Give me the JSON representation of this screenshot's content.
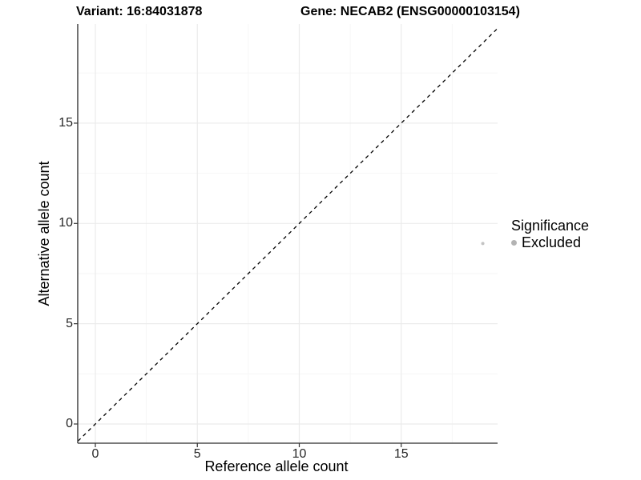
{
  "header": {
    "variant_title": "Variant: 16:84031878",
    "gene_title": "Gene: NECAB2 (ENSG00000103154)"
  },
  "chart_data": {
    "type": "scatter",
    "xlabel": "Reference allele count",
    "ylabel": "Alternative allele count",
    "x_ticks": [
      0,
      5,
      10,
      15
    ],
    "y_ticks": [
      0,
      5,
      10,
      15
    ],
    "x_minor_ticks": [
      2.5,
      7.5,
      12.5,
      17.5
    ],
    "y_minor_ticks": [
      2.5,
      7.5,
      12.5,
      17.5
    ],
    "xlim": [
      -0.85,
      19.72
    ],
    "ylim": [
      -0.94,
      19.94
    ],
    "grid": true,
    "identity_line": {
      "slope": 1,
      "intercept": 0,
      "style": "dashed",
      "color": "#000000"
    },
    "points": [
      {
        "x": 19,
        "y": 9,
        "significance": "Excluded",
        "color": "#c3c3c3",
        "radius": 2
      }
    ],
    "legend": {
      "title": "Significance",
      "position": "right",
      "entries": [
        {
          "label": "Excluded",
          "color": "#b3b3b3"
        }
      ]
    },
    "colors": {
      "grid_major": "#ebebeb",
      "grid_minor": "#f6f6f6",
      "axis_line": "#4f4f4f",
      "tick_mark": "#333333",
      "background": "#ffffff"
    }
  }
}
